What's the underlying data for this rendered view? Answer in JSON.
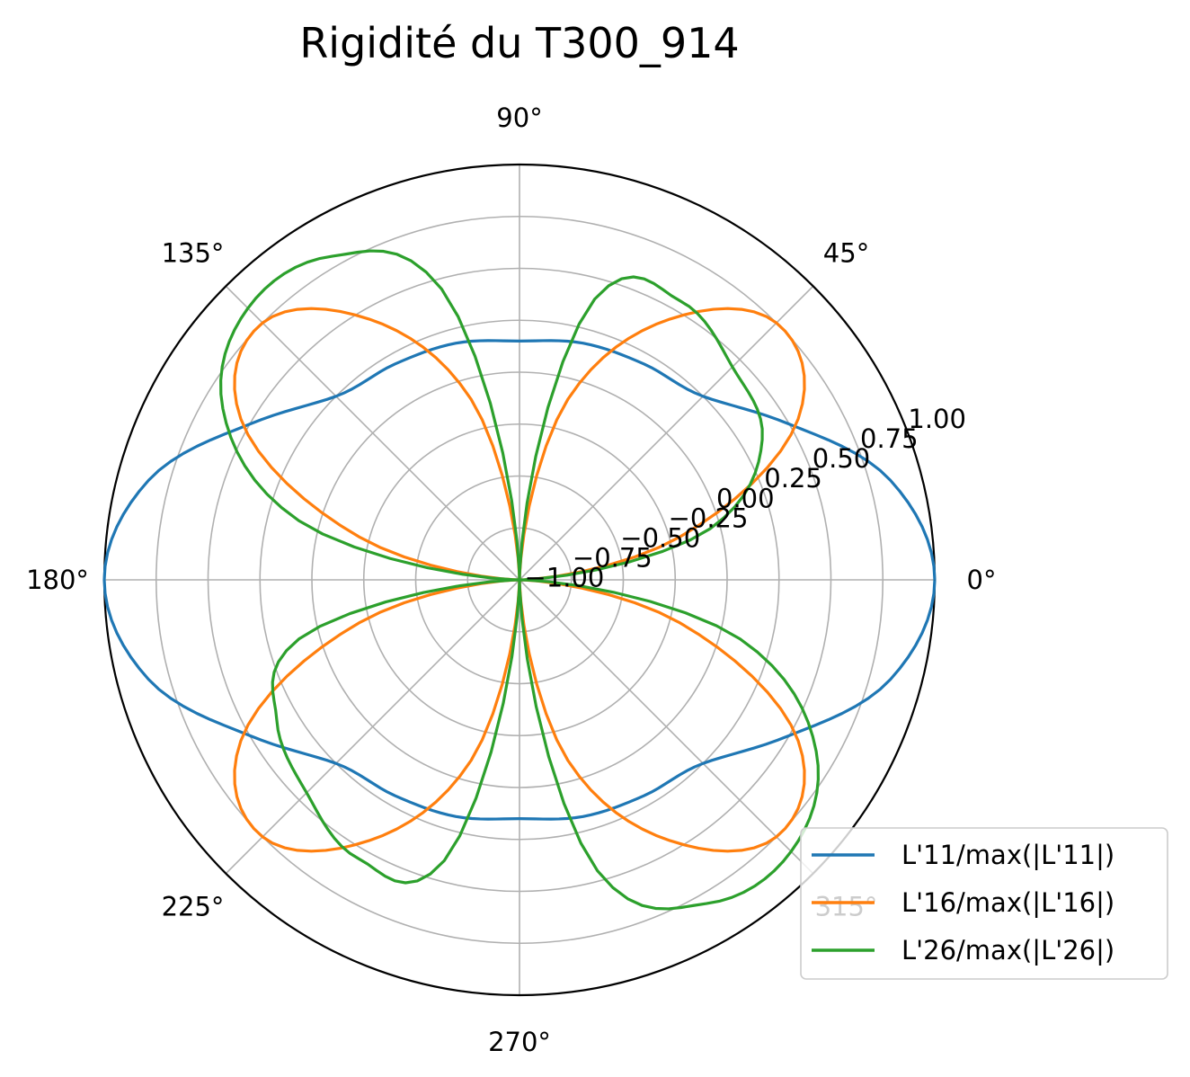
{
  "chart_data": {
    "type": "line",
    "subtype": "polar",
    "title": "Rigidité du T300_914",
    "theta_unit": "degrees",
    "theta_tick_labels": [
      "0°",
      "45°",
      "90°",
      "135°",
      "180°",
      "225°",
      "270°",
      "315°"
    ],
    "r_tick_labels": [
      "−1.00",
      "−0.75",
      "−0.50",
      "−0.25",
      "0.00",
      "0.25",
      "0.50",
      "0.75",
      "1.00"
    ],
    "rlim": [
      -1.0,
      1.0
    ],
    "grid": true,
    "legend_position": "lower-right",
    "theta": [
      0,
      15,
      30,
      45,
      60,
      75,
      90,
      105,
      120,
      135,
      150,
      165,
      180,
      195,
      210,
      225,
      240,
      255,
      270,
      285,
      300,
      315,
      330,
      345,
      360
    ],
    "series": [
      {
        "name": "L'11/max(|L'11|)",
        "color": "#1f77b4",
        "r": [
          1.0,
          0.85,
          0.5,
          0.25,
          0.2,
          0.18,
          0.15,
          0.18,
          0.2,
          0.25,
          0.5,
          0.85,
          1.0,
          0.85,
          0.5,
          0.25,
          0.2,
          0.18,
          0.15,
          0.18,
          0.2,
          0.25,
          0.5,
          0.85,
          1.0
        ]
      },
      {
        "name": "L'16/max(|L'16|)",
        "color": "#ff7f0e",
        "r": [
          -1.0,
          -0.2,
          0.55,
          0.75,
          0.45,
          -0.1,
          -1.0,
          -0.1,
          0.45,
          0.75,
          0.55,
          -0.2,
          -1.0,
          -0.2,
          0.55,
          0.75,
          0.45,
          -0.1,
          -1.0,
          -0.1,
          0.45,
          0.75,
          0.55,
          -0.2,
          -1.0
        ]
      },
      {
        "name": "L'26/max(|L'26|)",
        "color": "#2ca02c",
        "r": [
          -1.0,
          -0.05,
          0.35,
          0.45,
          0.55,
          0.4,
          -1.0,
          0.45,
          0.8,
          0.85,
          0.65,
          0.1,
          -1.0,
          0.1,
          0.35,
          0.45,
          0.55,
          0.4,
          -1.0,
          0.45,
          0.8,
          0.85,
          0.65,
          0.1,
          -1.0
        ]
      }
    ]
  }
}
